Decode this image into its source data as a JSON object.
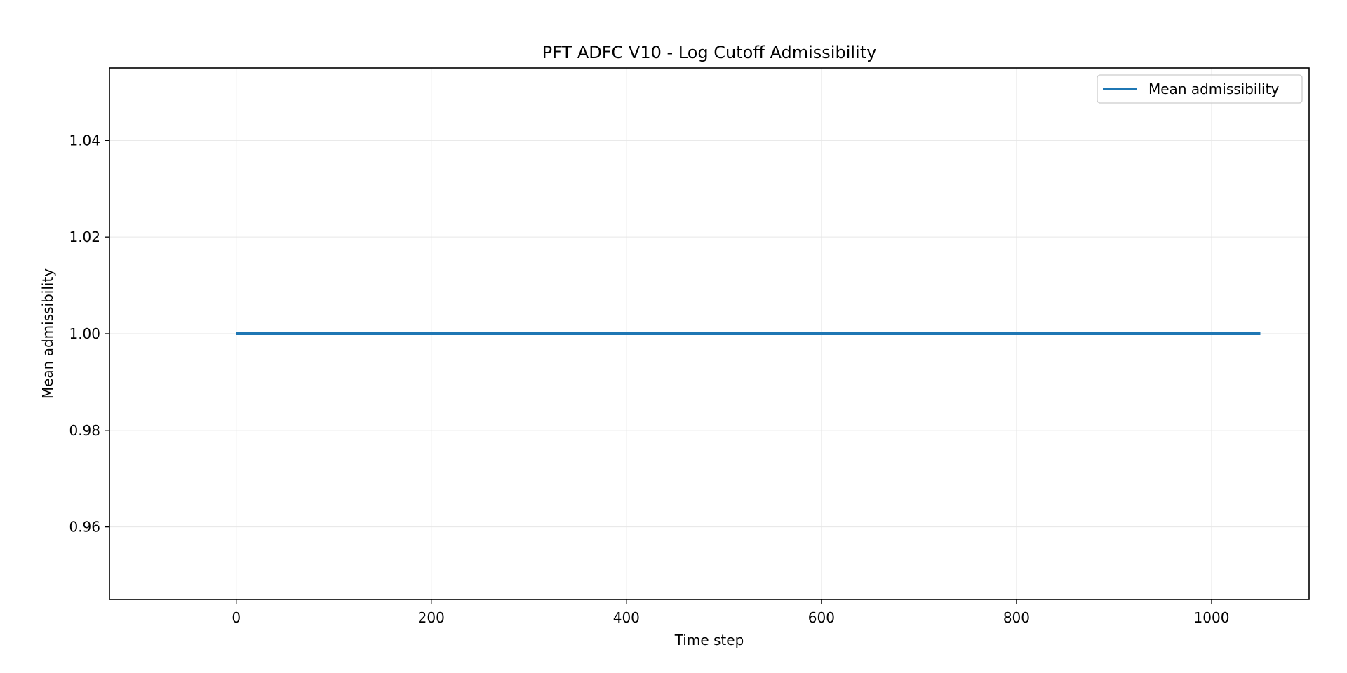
{
  "chart_data": {
    "type": "line",
    "title": "PFT ADFC V10 - Log Cutoff Admissibility",
    "xlabel": "Time step",
    "ylabel": "Mean admissibility",
    "xlim": [
      -130,
      1100
    ],
    "ylim": [
      0.945,
      1.055
    ],
    "xticks": [
      0,
      200,
      400,
      600,
      800,
      1000
    ],
    "xtick_labels": [
      "0",
      "200",
      "400",
      "600",
      "800",
      "1000"
    ],
    "yticks": [
      0.96,
      0.98,
      1.0,
      1.02,
      1.04
    ],
    "ytick_labels": [
      "0.96",
      "0.98",
      "1.00",
      "1.02",
      "1.04"
    ],
    "grid": true,
    "legend_position": "top-right",
    "series": [
      {
        "name": "Mean admissibility",
        "color": "#1f77b4",
        "x": [
          0,
          1050
        ],
        "y": [
          1.0,
          1.0
        ]
      }
    ]
  }
}
